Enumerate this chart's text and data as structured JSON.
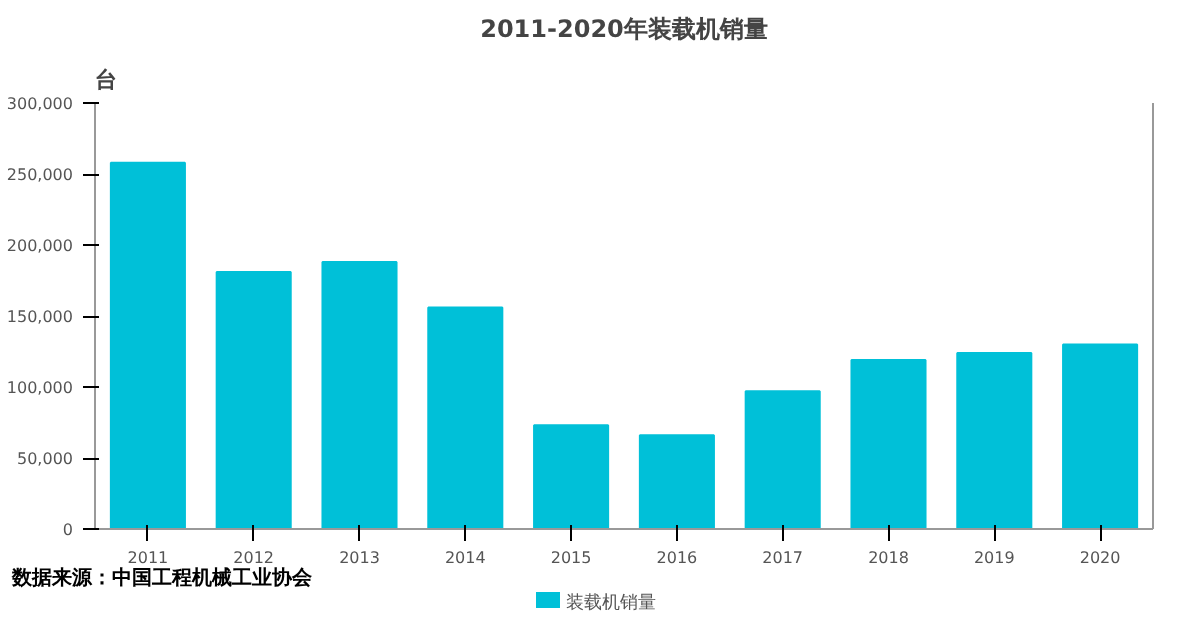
{
  "chart_data": {
    "type": "bar",
    "title": "2011-2020年装载机销量",
    "ylabel": "台",
    "categories": [
      "2011",
      "2012",
      "2013",
      "2014",
      "2015",
      "2016",
      "2017",
      "2018",
      "2019",
      "2020"
    ],
    "series": [
      {
        "name": "装载机销量",
        "color": "#00c0d8",
        "values": [
          258000,
          181000,
          188000,
          156000,
          73000,
          66000,
          97000,
          119000,
          124000,
          130000
        ]
      }
    ],
    "ylim": [
      0,
      300000
    ],
    "yticks": [
      {
        "value": 0,
        "label": "0"
      },
      {
        "value": 50000,
        "label": "50,000"
      },
      {
        "value": 100000,
        "label": "100,000"
      },
      {
        "value": 150000,
        "label": "150,000"
      },
      {
        "value": 200000,
        "label": "200,000"
      },
      {
        "value": 250000,
        "label": "250,000"
      },
      {
        "value": 300000,
        "label": "300,000"
      }
    ],
    "grid": false,
    "legend": "bottom",
    "annotations": [
      "数据来源：中国工程机械工业协会"
    ]
  }
}
